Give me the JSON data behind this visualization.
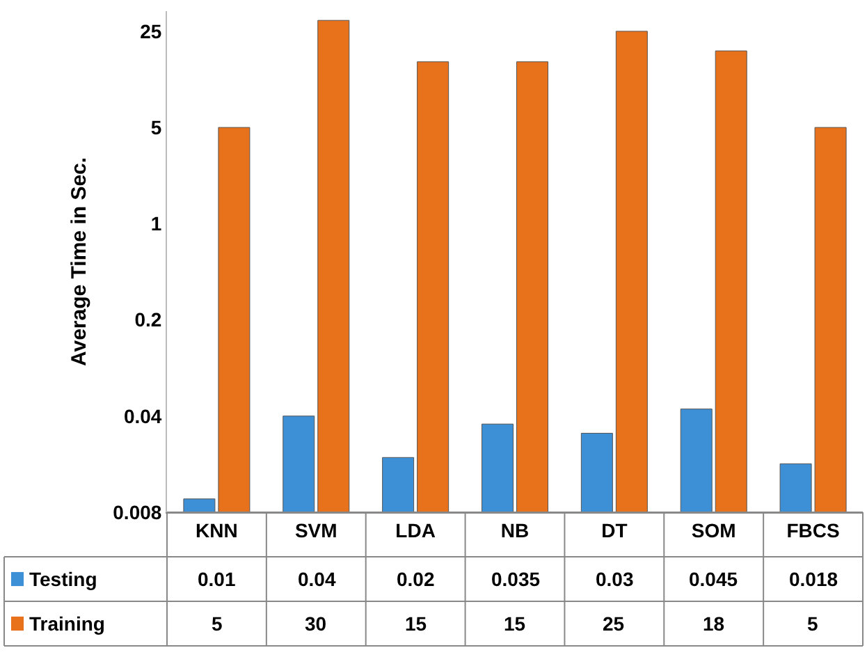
{
  "chart_data": {
    "type": "bar",
    "ylabel": "Average Time in Sec.",
    "categories": [
      "KNN",
      "SVM",
      "LDA",
      "NB",
      "DT",
      "SOM",
      "FBCS"
    ],
    "series": [
      {
        "name": "Testing",
        "color": "#3d8fd6",
        "values": [
          0.01,
          0.04,
          0.02,
          0.035,
          0.03,
          0.045,
          0.018
        ]
      },
      {
        "name": "Training",
        "color": "#e8711c",
        "values": [
          5,
          30,
          15,
          15,
          25,
          18,
          5
        ]
      }
    ],
    "log": "y",
    "ylim": [
      0.008,
      35
    ],
    "yticks": [
      0.008,
      0.04,
      0.2,
      1,
      5,
      25
    ],
    "legend": "bottom left",
    "data_labels": true
  }
}
